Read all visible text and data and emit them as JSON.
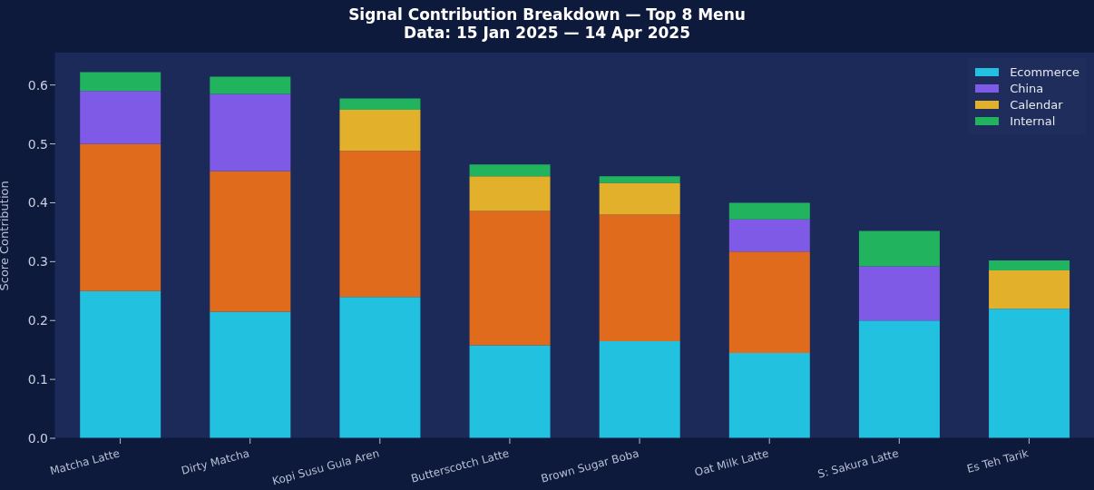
{
  "chart_data": {
    "type": "bar",
    "title": "Signal Contribution Breakdown — Top 8 Menu",
    "subtitle": "Data: 15 Jan 2025 — 14 Apr 2025",
    "ylabel": "Score Contribution",
    "categories": [
      "Matcha Latte",
      "Dirty Matcha",
      "Kopi Susu Gula Aren",
      "Butterscotch Latte",
      "Brown Sugar Boba",
      "Oat Milk Latte",
      "S: Sakura Latte",
      "Es Teh Tarik"
    ],
    "stacked": true,
    "series": [
      {
        "name": "Ecommerce",
        "color": "#22c1e0",
        "values": [
          0.25,
          0.215,
          0.24,
          0.158,
          0.165,
          0.145,
          0.2,
          0.22
        ]
      },
      {
        "color": "#e06b1d",
        "values": [
          0.25,
          0.239,
          0.248,
          0.228,
          0.215,
          0.172,
          0,
          0
        ]
      },
      {
        "name": "China",
        "color": "#7f5ae6",
        "values": [
          0.09,
          0.131,
          0,
          0,
          0,
          0.055,
          0.092,
          0
        ]
      },
      {
        "name": "Calendar",
        "color": "#e3b02b",
        "values": [
          0,
          0,
          0.07,
          0.059,
          0.054,
          0,
          0,
          0.065
        ]
      },
      {
        "name": "Internal",
        "color": "#22b35e",
        "values": [
          0.032,
          0.029,
          0.019,
          0.02,
          0.011,
          0.028,
          0.06,
          0.017
        ]
      }
    ],
    "ylim": [
      0,
      0.655
    ],
    "yticks": [
      {
        "value": 0,
        "label": "0.0"
      },
      {
        "value": 0.1,
        "label": "0.1"
      },
      {
        "value": 0.2,
        "label": "0.2"
      },
      {
        "value": 0.3,
        "label": "0.3"
      },
      {
        "value": 0.4,
        "label": "0.4"
      },
      {
        "value": 0.5,
        "label": "0.5"
      },
      {
        "value": 0.6,
        "label": "0.6"
      }
    ],
    "grid": false,
    "legend": "top right"
  }
}
